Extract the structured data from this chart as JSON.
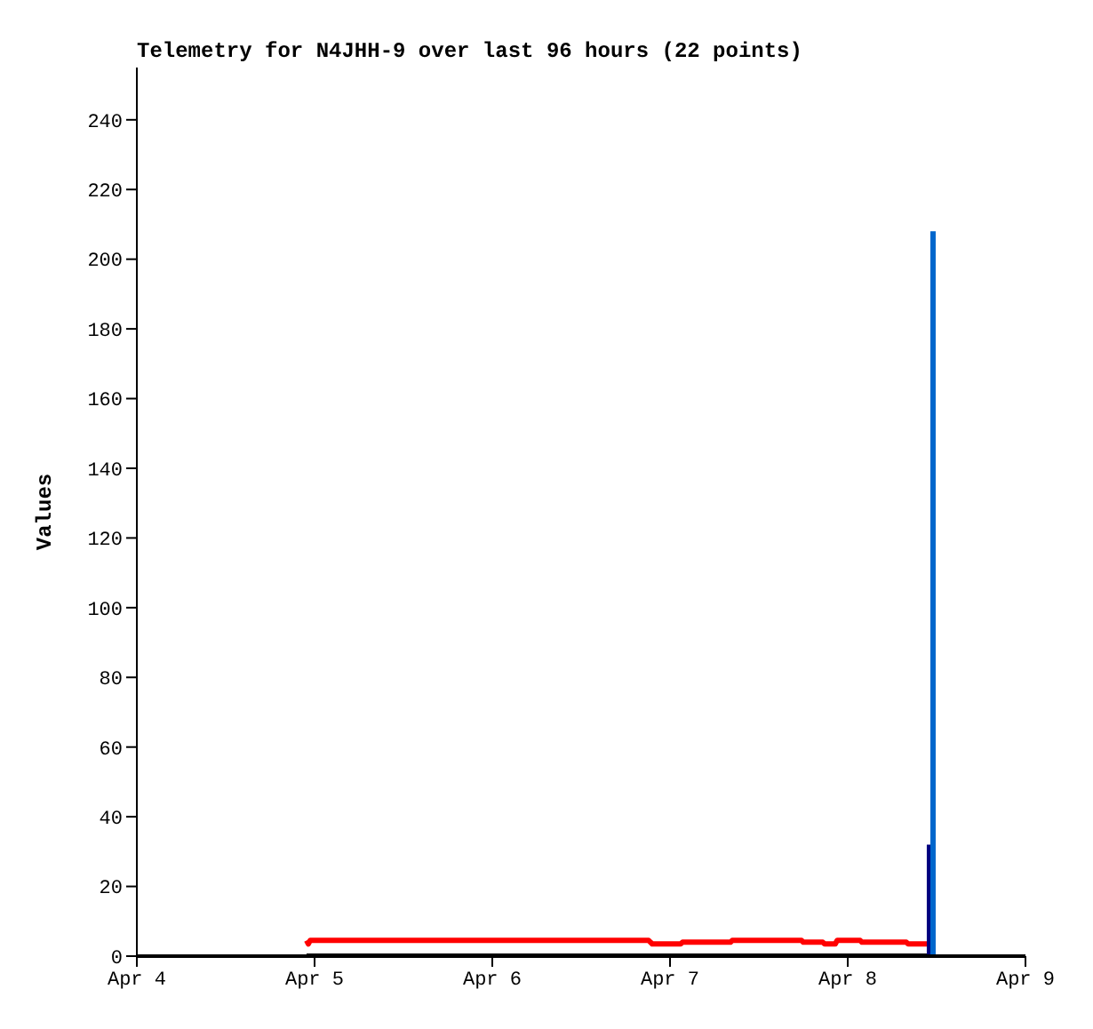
{
  "chart_data": {
    "type": "line",
    "title": "Telemetry for N4JHH-9 over last 96 hours (22 points)",
    "ylabel": "Values",
    "xlim": [
      "--04-04",
      "--04-09"
    ],
    "xticks": [
      {
        "value": "--04-04",
        "label": "Apr 4"
      },
      {
        "value": "--04-05",
        "label": "Apr 5"
      },
      {
        "value": "--04-06",
        "label": "Apr 6"
      },
      {
        "value": "--04-07",
        "label": "Apr 7"
      },
      {
        "value": "--04-08",
        "label": "Apr 8"
      },
      {
        "value": "--04-09",
        "label": "Apr 9"
      }
    ],
    "ylim": [
      0,
      255
    ],
    "yticks": [
      0,
      20,
      40,
      60,
      80,
      100,
      120,
      140,
      160,
      180,
      200,
      220,
      240
    ],
    "marker": "none",
    "line_style": "solid",
    "series": [
      {
        "color": "#ff0000",
        "x": [
          "--04-04T22:55",
          "--04-04T23:10",
          "--04-04T23:24",
          "--04-06T21:07",
          "--04-06T21:36",
          "--04-07T01:26",
          "--04-07T01:41",
          "--04-07T08:10",
          "--04-07T08:24",
          "--04-07T17:46",
          "--04-07T18:00",
          "--04-07T20:38",
          "--04-07T20:53",
          "--04-07T22:19",
          "--04-07T22:34",
          "--04-08T01:41",
          "--04-08T01:55",
          "--04-08T07:55",
          "--04-08T08:10",
          "--04-08T11:02"
        ],
        "values": [
          4.5,
          3.5,
          4.5,
          4.5,
          3.5,
          3.5,
          4,
          4,
          4.5,
          4.5,
          4,
          4,
          3.5,
          3.5,
          4.5,
          4.5,
          4,
          4,
          3.5,
          3.5
        ]
      },
      {
        "color": "#000000",
        "x": [
          "--04-04T22:55",
          "--04-08T11:02"
        ],
        "values": [
          0,
          0
        ]
      },
      {
        "color": "#000080",
        "x": [
          "--04-08T11:02",
          "--04-08T11:02"
        ],
        "values": [
          0,
          32
        ]
      },
      {
        "color": "#0066cc",
        "x": [
          "--04-08T11:31",
          "--04-08T11:31"
        ],
        "values": [
          0,
          208
        ]
      }
    ]
  }
}
